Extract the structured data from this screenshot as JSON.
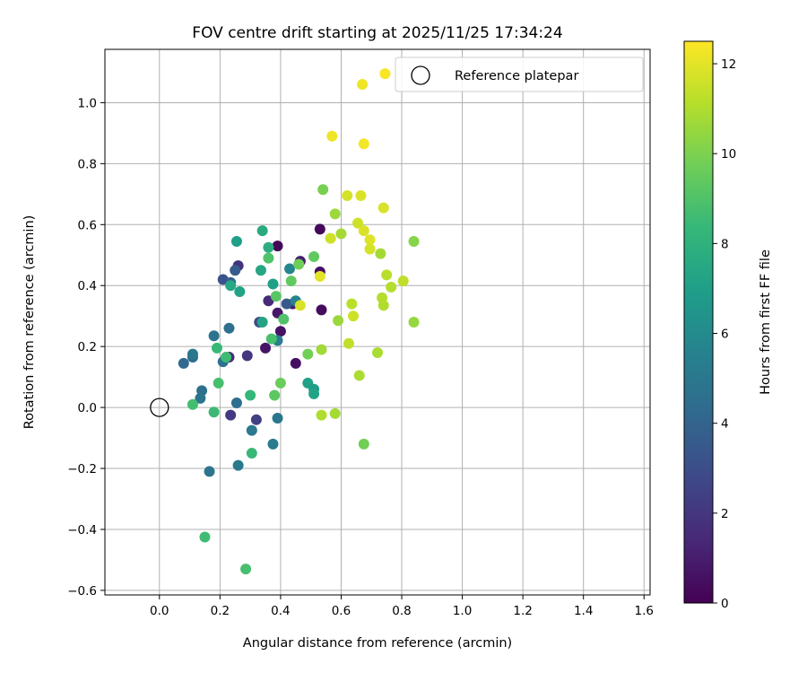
{
  "chart_data": {
    "type": "scatter",
    "title": "FOV centre drift starting at 2025/11/25 17:34:24",
    "xlabel": "Angular distance from reference (arcmin)",
    "ylabel": "Rotation from reference (arcmin)",
    "xlim": [
      -0.18,
      1.62
    ],
    "ylim": [
      -0.615,
      1.175
    ],
    "xticks": [
      0.0,
      0.2,
      0.4,
      0.6,
      0.8,
      1.0,
      1.2,
      1.4,
      1.6
    ],
    "xtick_labels": [
      "0.0",
      "0.2",
      "0.4",
      "0.6",
      "0.8",
      "1.0",
      "1.2",
      "1.4",
      "1.6"
    ],
    "yticks": [
      -0.6,
      -0.4,
      -0.2,
      0.0,
      0.2,
      0.4,
      0.6,
      0.8,
      1.0
    ],
    "ytick_labels": [
      "−0.6",
      "−0.4",
      "−0.2",
      "0.0",
      "0.2",
      "0.4",
      "0.6",
      "0.8",
      "1.0"
    ],
    "grid": true,
    "legend": {
      "placement": "top-right",
      "entries": [
        "Reference platepar"
      ]
    },
    "reference_point": {
      "x": 0.0,
      "y": 0.0,
      "label": "Reference platepar"
    },
    "colorbar": {
      "label": "Hours from first FF file",
      "min": 0,
      "max": 12.5,
      "ticks": [
        0,
        2,
        4,
        6,
        8,
        10,
        12
      ],
      "tick_labels": [
        "0",
        "2",
        "4",
        "6",
        "8",
        "10",
        "12"
      ],
      "colormap": "viridis"
    },
    "points": [
      {
        "x": 0.39,
        "y": 0.53,
        "c": 0.2
      },
      {
        "x": 0.53,
        "y": 0.585,
        "c": 0.3
      },
      {
        "x": 0.53,
        "y": 0.445,
        "c": 0.5
      },
      {
        "x": 0.535,
        "y": 0.32,
        "c": 0.4
      },
      {
        "x": 0.4,
        "y": 0.25,
        "c": 0.6
      },
      {
        "x": 0.39,
        "y": 0.31,
        "c": 0.8
      },
      {
        "x": 0.35,
        "y": 0.195,
        "c": 0.7
      },
      {
        "x": 0.45,
        "y": 0.145,
        "c": 0.5
      },
      {
        "x": 0.465,
        "y": 0.48,
        "c": 1.0
      },
      {
        "x": 0.44,
        "y": 0.34,
        "c": 1.2
      },
      {
        "x": 0.36,
        "y": 0.35,
        "c": 1.5
      },
      {
        "x": 0.26,
        "y": 0.465,
        "c": 1.8
      },
      {
        "x": 0.23,
        "y": 0.165,
        "c": 1.6
      },
      {
        "x": 0.29,
        "y": 0.17,
        "c": 2.0
      },
      {
        "x": 0.235,
        "y": -0.025,
        "c": 2.2
      },
      {
        "x": 0.32,
        "y": -0.04,
        "c": 2.4
      },
      {
        "x": 0.33,
        "y": 0.28,
        "c": 2.8
      },
      {
        "x": 0.21,
        "y": 0.42,
        "c": 3.2
      },
      {
        "x": 0.25,
        "y": 0.45,
        "c": 3.6
      },
      {
        "x": 0.235,
        "y": 0.41,
        "c": 3.8
      },
      {
        "x": 0.42,
        "y": 0.34,
        "c": 3.5
      },
      {
        "x": 0.08,
        "y": 0.145,
        "c": 4.2
      },
      {
        "x": 0.11,
        "y": 0.165,
        "c": 4.4
      },
      {
        "x": 0.11,
        "y": 0.175,
        "c": 5.0
      },
      {
        "x": 0.14,
        "y": 0.055,
        "c": 4.6
      },
      {
        "x": 0.135,
        "y": 0.03,
        "c": 4.8
      },
      {
        "x": 0.165,
        "y": -0.21,
        "c": 4.9
      },
      {
        "x": 0.255,
        "y": 0.015,
        "c": 4.5
      },
      {
        "x": 0.21,
        "y": 0.15,
        "c": 4.7
      },
      {
        "x": 0.18,
        "y": 0.235,
        "c": 4.8
      },
      {
        "x": 0.23,
        "y": 0.26,
        "c": 4.6
      },
      {
        "x": 0.26,
        "y": -0.19,
        "c": 5.0
      },
      {
        "x": 0.305,
        "y": -0.075,
        "c": 5.1
      },
      {
        "x": 0.375,
        "y": -0.12,
        "c": 5.2
      },
      {
        "x": 0.39,
        "y": -0.035,
        "c": 5.0
      },
      {
        "x": 0.39,
        "y": 0.22,
        "c": 5.3
      },
      {
        "x": 0.43,
        "y": 0.455,
        "c": 5.8
      },
      {
        "x": 0.45,
        "y": 0.35,
        "c": 5.6
      },
      {
        "x": 0.255,
        "y": 0.545,
        "c": 7.0
      },
      {
        "x": 0.265,
        "y": 0.38,
        "c": 7.2
      },
      {
        "x": 0.235,
        "y": 0.4,
        "c": 7.5
      },
      {
        "x": 0.34,
        "y": 0.58,
        "c": 7.6
      },
      {
        "x": 0.36,
        "y": 0.525,
        "c": 7.8
      },
      {
        "x": 0.335,
        "y": 0.45,
        "c": 7.4
      },
      {
        "x": 0.375,
        "y": 0.405,
        "c": 7.0
      },
      {
        "x": 0.34,
        "y": 0.28,
        "c": 7.3
      },
      {
        "x": 0.49,
        "y": 0.08,
        "c": 7.1
      },
      {
        "x": 0.51,
        "y": 0.06,
        "c": 6.9
      },
      {
        "x": 0.51,
        "y": 0.045,
        "c": 7.2
      },
      {
        "x": 0.19,
        "y": 0.195,
        "c": 8.4
      },
      {
        "x": 0.22,
        "y": 0.165,
        "c": 8.6
      },
      {
        "x": 0.195,
        "y": 0.08,
        "c": 8.8
      },
      {
        "x": 0.11,
        "y": 0.01,
        "c": 8.7
      },
      {
        "x": 0.18,
        "y": -0.015,
        "c": 8.5
      },
      {
        "x": 0.3,
        "y": 0.04,
        "c": 8.3
      },
      {
        "x": 0.305,
        "y": -0.15,
        "c": 8.4
      },
      {
        "x": 0.15,
        "y": -0.425,
        "c": 8.6
      },
      {
        "x": 0.285,
        "y": -0.53,
        "c": 8.8
      },
      {
        "x": 0.36,
        "y": 0.49,
        "c": 9.0
      },
      {
        "x": 0.385,
        "y": 0.365,
        "c": 9.2
      },
      {
        "x": 0.37,
        "y": 0.225,
        "c": 8.8
      },
      {
        "x": 0.41,
        "y": 0.29,
        "c": 9.0
      },
      {
        "x": 0.38,
        "y": 0.04,
        "c": 9.3
      },
      {
        "x": 0.4,
        "y": 0.08,
        "c": 9.6
      },
      {
        "x": 0.435,
        "y": 0.415,
        "c": 9.4
      },
      {
        "x": 0.46,
        "y": 0.47,
        "c": 9.7
      },
      {
        "x": 0.51,
        "y": 0.495,
        "c": 9.4
      },
      {
        "x": 0.49,
        "y": 0.175,
        "c": 9.8
      },
      {
        "x": 0.675,
        "y": -0.12,
        "c": 9.8
      },
      {
        "x": 0.54,
        "y": 0.715,
        "c": 9.9
      },
      {
        "x": 0.84,
        "y": 0.545,
        "c": 10.2
      },
      {
        "x": 0.84,
        "y": 0.28,
        "c": 10.5
      },
      {
        "x": 0.58,
        "y": 0.635,
        "c": 10.6
      },
      {
        "x": 0.6,
        "y": 0.57,
        "c": 10.8
      },
      {
        "x": 0.73,
        "y": 0.505,
        "c": 10.8
      },
      {
        "x": 0.59,
        "y": 0.285,
        "c": 10.6
      },
      {
        "x": 0.535,
        "y": 0.19,
        "c": 10.7
      },
      {
        "x": 0.66,
        "y": 0.105,
        "c": 10.9
      },
      {
        "x": 0.58,
        "y": -0.02,
        "c": 10.8
      },
      {
        "x": 0.535,
        "y": -0.025,
        "c": 11.0
      },
      {
        "x": 0.72,
        "y": 0.18,
        "c": 10.9
      },
      {
        "x": 0.74,
        "y": 0.335,
        "c": 11.0
      },
      {
        "x": 0.735,
        "y": 0.36,
        "c": 11.1
      },
      {
        "x": 0.75,
        "y": 0.435,
        "c": 11.2
      },
      {
        "x": 0.765,
        "y": 0.395,
        "c": 11.1
      },
      {
        "x": 0.805,
        "y": 0.415,
        "c": 11.3
      },
      {
        "x": 0.635,
        "y": 0.34,
        "c": 11.2
      },
      {
        "x": 0.625,
        "y": 0.21,
        "c": 11.3
      },
      {
        "x": 0.64,
        "y": 0.3,
        "c": 11.6
      },
      {
        "x": 0.465,
        "y": 0.335,
        "c": 11.8
      },
      {
        "x": 0.53,
        "y": 0.43,
        "c": 12.0
      },
      {
        "x": 0.565,
        "y": 0.555,
        "c": 11.6
      },
      {
        "x": 0.62,
        "y": 0.695,
        "c": 11.7
      },
      {
        "x": 0.665,
        "y": 0.695,
        "c": 11.8
      },
      {
        "x": 0.655,
        "y": 0.605,
        "c": 11.6
      },
      {
        "x": 0.675,
        "y": 0.58,
        "c": 11.8
      },
      {
        "x": 0.695,
        "y": 0.55,
        "c": 11.9
      },
      {
        "x": 0.695,
        "y": 0.52,
        "c": 11.7
      },
      {
        "x": 0.74,
        "y": 0.655,
        "c": 11.8
      },
      {
        "x": 0.57,
        "y": 0.89,
        "c": 12.2
      },
      {
        "x": 0.675,
        "y": 0.865,
        "c": 12.3
      },
      {
        "x": 0.67,
        "y": 1.06,
        "c": 12.2
      },
      {
        "x": 0.745,
        "y": 1.095,
        "c": 12.4
      }
    ]
  }
}
